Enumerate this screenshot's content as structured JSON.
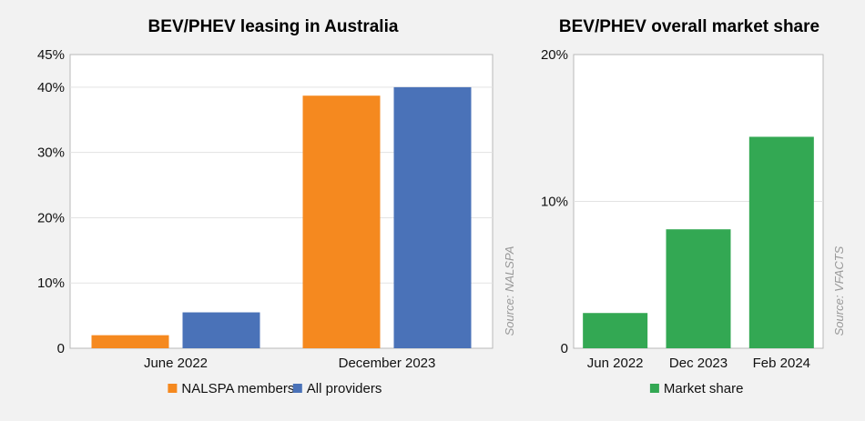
{
  "chart_data": [
    {
      "type": "bar",
      "title": "BEV/PHEV leasing in Australia",
      "categories": [
        "June 2022",
        "December 2023"
      ],
      "series": [
        {
          "name": "NALSPA members",
          "values": [
            2.0,
            38.7
          ],
          "color": "#f5891f"
        },
        {
          "name": "All providers",
          "values": [
            5.5,
            40.0
          ],
          "color": "#4a72b8"
        }
      ],
      "ylim": [
        0,
        45
      ],
      "yticks": [
        {
          "value": 0,
          "label": "0"
        },
        {
          "value": 10,
          "label": "10%"
        },
        {
          "value": 20,
          "label": "20%"
        },
        {
          "value": 30,
          "label": "30%"
        },
        {
          "value": 40,
          "label": "40%"
        },
        {
          "value": 45,
          "label": "45%"
        }
      ],
      "grid": true,
      "legend": "bottom",
      "source": "Source: NALSPA"
    },
    {
      "type": "bar",
      "title": "BEV/PHEV overall market share",
      "categories": [
        "Jun 2022",
        "Dec 2023",
        "Feb 2024"
      ],
      "series": [
        {
          "name": "Market share",
          "values": [
            2.4,
            8.1,
            14.4
          ],
          "color": "#33a853"
        }
      ],
      "ylim": [
        0,
        20
      ],
      "yticks": [
        {
          "value": 0,
          "label": "0"
        },
        {
          "value": 10,
          "label": "10%"
        },
        {
          "value": 20,
          "label": "20%"
        }
      ],
      "grid": true,
      "legend": "bottom",
      "source": "Source: VFACTS"
    }
  ]
}
